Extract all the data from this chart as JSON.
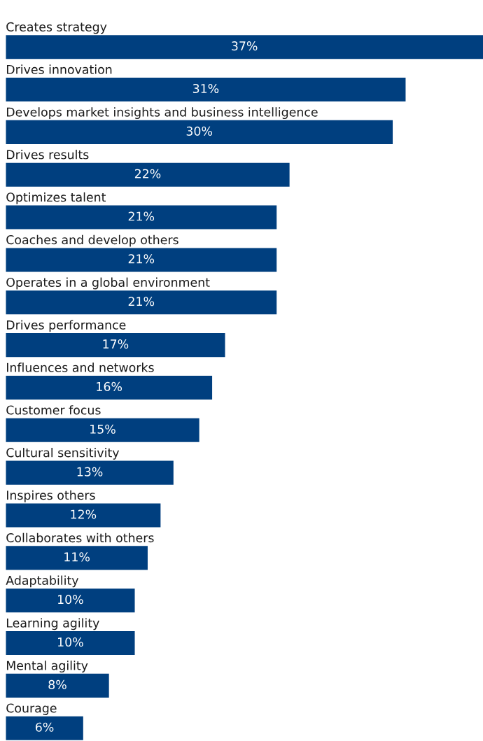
{
  "chart_data": {
    "type": "bar",
    "orientation": "horizontal",
    "color": "#003f7f",
    "data_labels": true,
    "grid": false,
    "legend": false,
    "tick_labels": false,
    "categories": [
      "Creates strategy",
      "Drives innovation",
      "Develops market insights and business intelligence",
      "Drives results",
      "Optimizes talent",
      "Coaches and develop others",
      "Operates in a global environment",
      "Drives performance",
      "Influences and networks",
      "Customer focus",
      "Cultural sensitivity",
      "Inspires others",
      "Collaborates with others",
      "Adaptability",
      "Learning agility",
      "Mental agility",
      "Courage"
    ],
    "values": [
      37,
      31,
      30,
      22,
      21,
      21,
      21,
      17,
      16,
      15,
      13,
      12,
      11,
      10,
      10,
      8,
      6
    ],
    "value_labels": [
      "37%",
      "31%",
      "30%",
      "22%",
      "21%",
      "21%",
      "21%",
      "17%",
      "16%",
      "15%",
      "13%",
      "12%",
      "11%",
      "10%",
      "10%",
      "8%",
      "6%"
    ]
  }
}
